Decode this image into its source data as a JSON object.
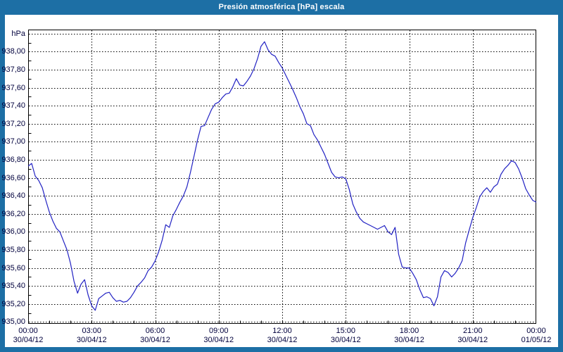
{
  "window": {
    "title": "Presión atmosférica [hPa] escala"
  },
  "chart_data": {
    "type": "line",
    "title": "Presión atmosférica [hPa] escala",
    "unit_label": "hPa",
    "legend": "none",
    "grid": "dashed",
    "y_axis": {
      "min": 935.0,
      "max": 938.2,
      "grid_step": 0.2,
      "decimal_separator": ",",
      "tick_labels": [
        "938,00",
        "937,80",
        "937,60",
        "937,40",
        "937,20",
        "937,00",
        "936,80",
        "936,60",
        "936,40",
        "936,20",
        "936,00",
        "935,80",
        "935,60",
        "935,40",
        "935,20",
        "935,00"
      ]
    },
    "x_axis": {
      "tick_interval_hours": 3,
      "minor_tick_interval_hours": 1,
      "ticks": [
        {
          "time": "00:00",
          "date": "30/04/12"
        },
        {
          "time": "03:00",
          "date": "30/04/12"
        },
        {
          "time": "06:00",
          "date": "30/04/12"
        },
        {
          "time": "09:00",
          "date": "30/04/12"
        },
        {
          "time": "12:00",
          "date": "30/04/12"
        },
        {
          "time": "15:00",
          "date": "30/04/12"
        },
        {
          "time": "18:00",
          "date": "30/04/12"
        },
        {
          "time": "21:00",
          "date": "30/04/12"
        },
        {
          "time": "00:00",
          "date": "01/05/12"
        }
      ]
    },
    "series": [
      {
        "name": "Presión atmosférica",
        "unit": "hPa",
        "start": "30/04/12 00:00",
        "end": "01/05/12 00:00",
        "interval_minutes": 10,
        "values": [
          936.73,
          936.76,
          936.62,
          936.57,
          936.49,
          936.35,
          936.22,
          936.12,
          936.04,
          936.0,
          935.9,
          935.8,
          935.65,
          935.45,
          935.32,
          935.42,
          935.47,
          935.3,
          935.18,
          935.13,
          935.26,
          935.29,
          935.32,
          935.33,
          935.27,
          935.23,
          935.24,
          935.22,
          935.23,
          935.27,
          935.33,
          935.4,
          935.44,
          935.49,
          935.57,
          935.61,
          935.68,
          935.78,
          935.91,
          936.08,
          936.05,
          936.18,
          936.25,
          936.33,
          936.4,
          936.5,
          936.66,
          936.84,
          937.02,
          937.17,
          937.18,
          937.27,
          937.36,
          937.42,
          937.44,
          937.49,
          937.53,
          937.54,
          937.61,
          937.7,
          937.63,
          937.62,
          937.67,
          937.73,
          937.81,
          937.92,
          938.06,
          938.11,
          938.02,
          937.97,
          937.95,
          937.88,
          937.82,
          937.74,
          937.66,
          937.58,
          937.49,
          937.39,
          937.31,
          937.2,
          937.18,
          937.08,
          937.02,
          936.94,
          936.86,
          936.76,
          936.66,
          936.61,
          936.6,
          936.61,
          936.59,
          936.47,
          936.31,
          936.22,
          936.15,
          936.11,
          936.09,
          936.07,
          936.05,
          936.03,
          936.05,
          936.07,
          936.0,
          935.97,
          936.05,
          935.75,
          935.61,
          935.6,
          935.6,
          935.54,
          935.47,
          935.36,
          935.27,
          935.28,
          935.26,
          935.18,
          935.28,
          935.5,
          935.57,
          935.55,
          935.5,
          935.54,
          935.6,
          935.68,
          935.88,
          936.02,
          936.16,
          936.27,
          936.39,
          936.45,
          936.49,
          936.44,
          936.5,
          936.53,
          936.64,
          936.7,
          936.74,
          936.79,
          936.77,
          936.7,
          936.6,
          936.48,
          936.41,
          936.35,
          936.33
        ]
      }
    ],
    "colors": {
      "frame": "#1d6fa5",
      "title_text": "#ffffff",
      "plot_bg": "#ffffff",
      "grid": "#000000",
      "axis_border": "#000000",
      "labels": "#00003d",
      "line": "#2222c3"
    }
  }
}
